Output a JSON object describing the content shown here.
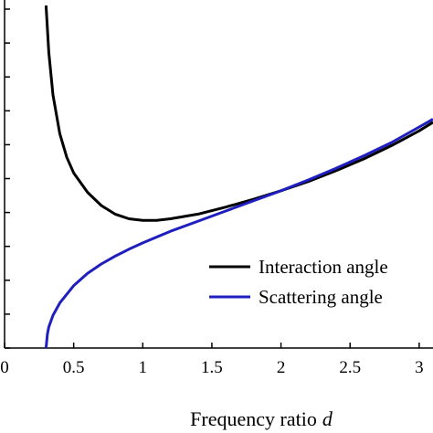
{
  "chart_data": {
    "type": "line",
    "title": "",
    "xlabel": "Frequency ratio",
    "xlabel_var": "d",
    "ylabel": "",
    "xlim": [
      0,
      3.1
    ],
    "x_ticks": [
      0,
      0.5,
      1,
      1.5,
      2,
      2.5,
      3
    ],
    "x_tick_labels": [
      "0",
      "0.5",
      "1",
      "1.5",
      "2",
      "2.5",
      "3"
    ],
    "y_tick_count": 10,
    "grid": false,
    "legend": {
      "position": "bottom-right"
    },
    "series": [
      {
        "name": "Interaction angle",
        "color": "#000000",
        "x": [
          0.3,
          0.32,
          0.35,
          0.4,
          0.45,
          0.5,
          0.6,
          0.7,
          0.8,
          0.9,
          1.0,
          1.1,
          1.2,
          1.4,
          1.6,
          1.8,
          2.0,
          2.2,
          2.4,
          2.6,
          2.8,
          3.0,
          3.1
        ],
        "y": [
          4.4,
          3.8,
          3.25,
          2.75,
          2.45,
          2.25,
          2.0,
          1.83,
          1.72,
          1.66,
          1.64,
          1.64,
          1.66,
          1.72,
          1.81,
          1.91,
          2.02,
          2.14,
          2.28,
          2.43,
          2.6,
          2.79,
          2.9
        ]
      },
      {
        "name": "Scattering angle",
        "color": "#1f1fbf",
        "x": [
          0.3,
          0.31,
          0.32,
          0.35,
          0.4,
          0.5,
          0.6,
          0.7,
          0.8,
          0.9,
          1.0,
          1.2,
          1.4,
          1.6,
          1.8,
          2.0,
          2.2,
          2.4,
          2.6,
          2.8,
          3.0,
          3.1
        ],
        "y": [
          0.0,
          0.18,
          0.27,
          0.42,
          0.58,
          0.8,
          0.96,
          1.08,
          1.18,
          1.27,
          1.35,
          1.5,
          1.63,
          1.76,
          1.89,
          2.02,
          2.16,
          2.31,
          2.47,
          2.64,
          2.84,
          2.94
        ]
      }
    ]
  }
}
